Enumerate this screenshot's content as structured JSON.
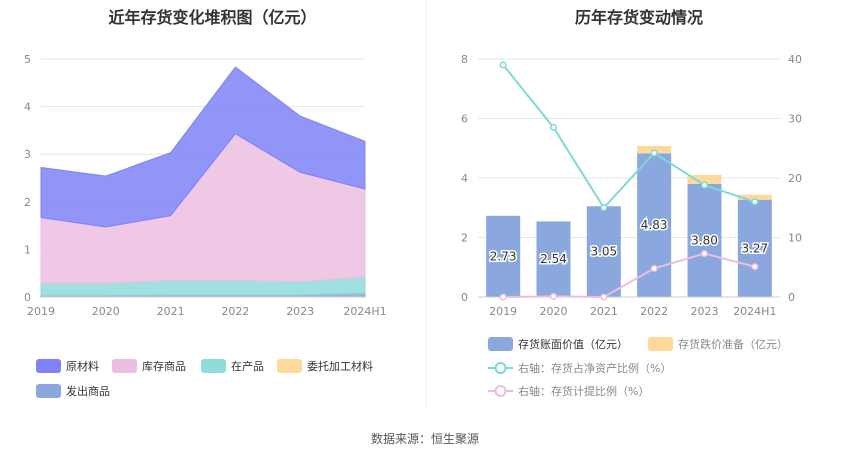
{
  "left_title": "近年存货变化堆积图（亿元）",
  "right_title": "历年存货变动情况",
  "source_label": "数据来源：恒生聚源",
  "colors": {
    "raw": "#7e82f6",
    "finished": "#ebbedf",
    "wip": "#8edcdc",
    "outsourced": "#ffd99a",
    "shipped": "#8aa8de",
    "book_bar": "#8aa8de",
    "reserve_bar": "#ffd99a",
    "ratio_line": "#7fd8d8",
    "provision_line": "#ebbedf"
  },
  "chart_data": [
    {
      "type": "area",
      "stacked": true,
      "title": "近年存货变化堆积图（亿元）",
      "categories": [
        "2019",
        "2020",
        "2021",
        "2022",
        "2023",
        "2024H1"
      ],
      "ylim": [
        0,
        5
      ],
      "yticks": [
        0,
        1,
        2,
        3,
        4,
        5
      ],
      "grid": true,
      "legend_position": "bottom",
      "series": [
        {
          "name": "原材料",
          "color_key": "raw",
          "values": [
            1.05,
            1.07,
            1.32,
            1.4,
            1.18,
            1.0
          ]
        },
        {
          "name": "库存商品",
          "color_key": "finished",
          "values": [
            1.38,
            1.18,
            1.36,
            3.08,
            2.3,
            1.85
          ]
        },
        {
          "name": "在产品",
          "color_key": "wip",
          "values": [
            0.25,
            0.25,
            0.3,
            0.3,
            0.27,
            0.33
          ]
        },
        {
          "name": "委托加工材料",
          "color_key": "outsourced",
          "values": [
            0.0,
            0.0,
            0.0,
            0.0,
            0.0,
            0.0
          ]
        },
        {
          "name": "发出商品",
          "color_key": "shipped",
          "values": [
            0.04,
            0.04,
            0.05,
            0.05,
            0.05,
            0.09
          ]
        }
      ]
    },
    {
      "type": "bar",
      "title": "历年存货变动情况",
      "categories": [
        "2019",
        "2020",
        "2021",
        "2022",
        "2023",
        "2024H1"
      ],
      "ylim": [
        0,
        8
      ],
      "yticks": [
        0,
        2,
        4,
        6,
        8
      ],
      "y2lim": [
        0,
        40
      ],
      "y2ticks": [
        0,
        10,
        20,
        30,
        40
      ],
      "grid": true,
      "legend_position": "bottom",
      "bars": [
        {
          "name": "存货账面价值（亿元）",
          "color_key": "book_bar",
          "values": [
            2.73,
            2.54,
            3.05,
            4.83,
            3.8,
            3.27
          ],
          "labels": [
            "2.73",
            "2.54",
            "3.05",
            "4.83",
            "3.80",
            "3.27"
          ]
        },
        {
          "name": "存货跌价准备（亿元）",
          "color_key": "reserve_bar",
          "values": [
            0.0,
            0.0,
            0.0,
            0.25,
            0.3,
            0.17
          ]
        }
      ],
      "lines": [
        {
          "name": "右轴：存货占净资产比例（%）",
          "color_key": "ratio_line",
          "axis": "right",
          "values": [
            39.0,
            28.5,
            15.0,
            24.2,
            18.8,
            16.0
          ]
        },
        {
          "name": "右轴：存货计提比例（%）",
          "color_key": "provision_line",
          "axis": "right",
          "values": [
            0.0,
            0.1,
            0.0,
            4.8,
            7.3,
            5.1
          ]
        }
      ]
    }
  ]
}
